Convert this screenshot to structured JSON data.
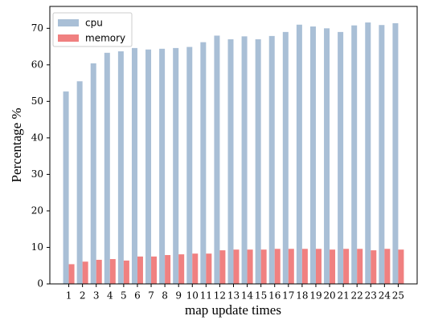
{
  "chart_data": {
    "type": "bar",
    "xlabel": "map update times",
    "ylabel": "Percentage %",
    "categories": [
      "1",
      "2",
      "3",
      "4",
      "5",
      "6",
      "7",
      "8",
      "9",
      "10",
      "11",
      "12",
      "13",
      "14",
      "15",
      "16",
      "17",
      "18",
      "19",
      "20",
      "21",
      "22",
      "23",
      "24",
      "25"
    ],
    "series": [
      {
        "name": "cpu",
        "color": "#a9bfd6",
        "values": [
          52.7,
          55.5,
          60.4,
          63.3,
          63.7,
          64.6,
          64.2,
          64.4,
          64.6,
          64.9,
          66.2,
          68.0,
          67.0,
          67.8,
          67.0,
          67.9,
          69.0,
          71.0,
          70.5,
          70.0,
          69.0,
          70.8,
          71.6,
          70.9,
          71.4
        ]
      },
      {
        "name": "memory",
        "color": "#f08080",
        "values": [
          5.4,
          6.1,
          6.6,
          6.8,
          6.4,
          7.5,
          7.5,
          7.9,
          8.1,
          8.3,
          8.3,
          9.2,
          9.4,
          9.4,
          9.4,
          9.6,
          9.6,
          9.6,
          9.6,
          9.4,
          9.6,
          9.6,
          9.2,
          9.6,
          9.4
        ]
      }
    ],
    "ylim": [
      0,
      76
    ],
    "yticks": [
      0,
      10,
      20,
      30,
      40,
      50,
      60,
      70
    ],
    "grid": false,
    "legend": "upper-left"
  }
}
